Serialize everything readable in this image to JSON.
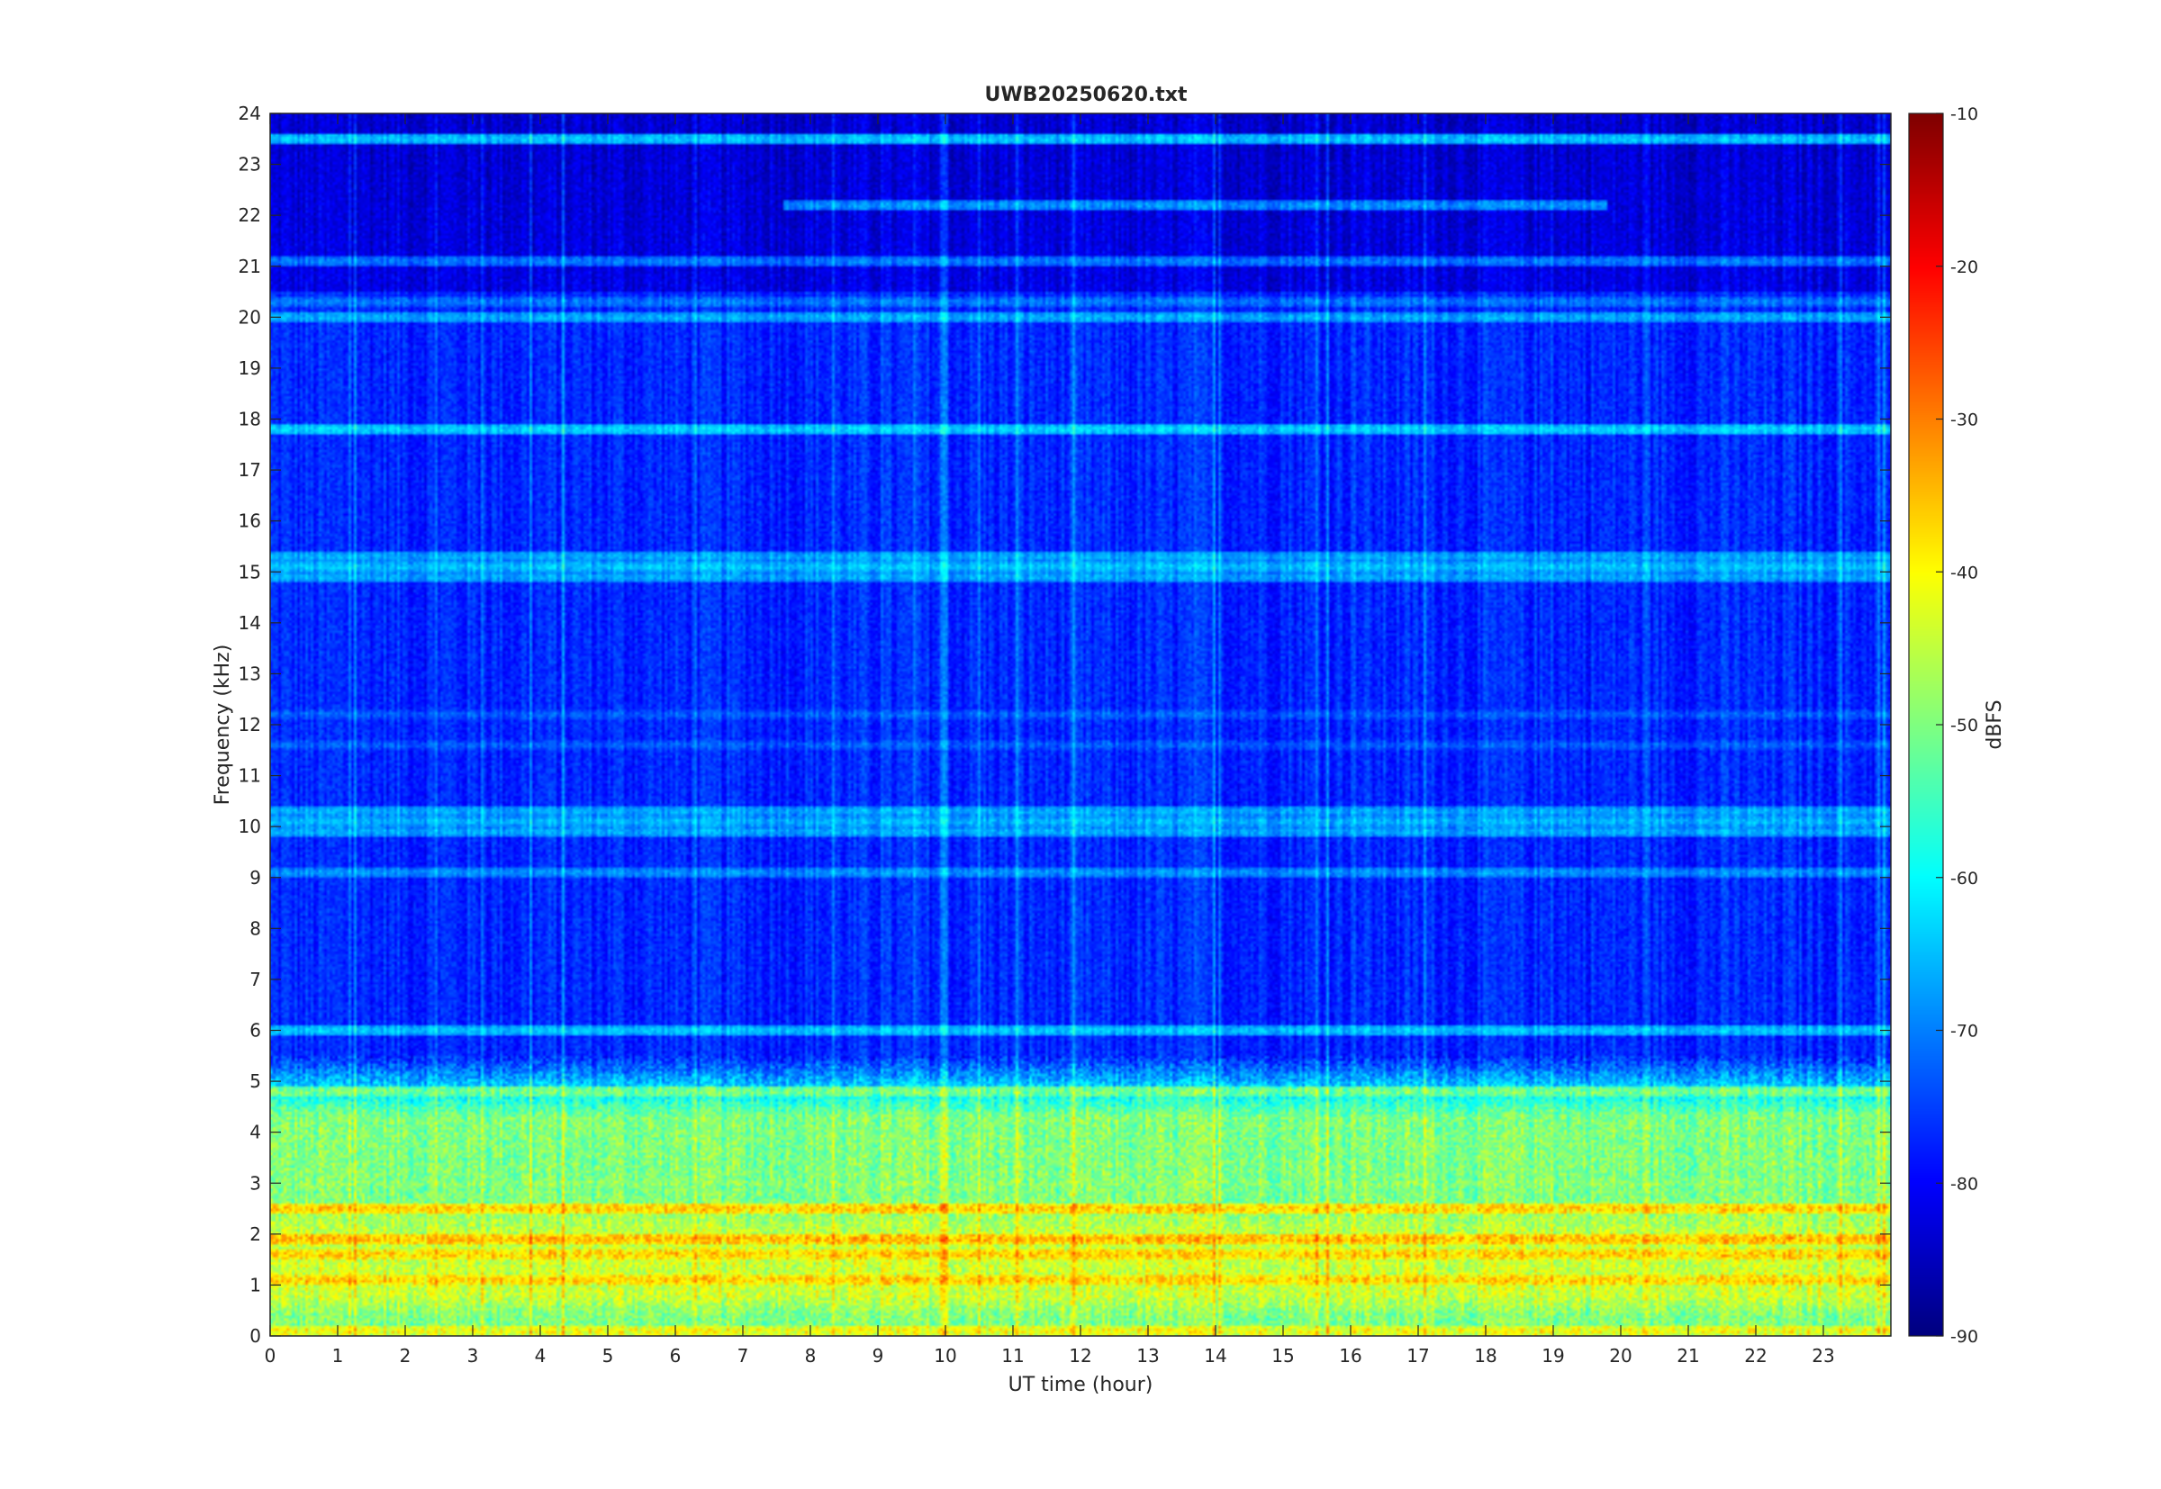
{
  "chart_data": {
    "type": "heatmap",
    "title": "UWB20250620.txt",
    "xlabel": "UT time (hour)",
    "ylabel": "Frequency (kHz)",
    "xlim": [
      0,
      24
    ],
    "ylim": [
      0,
      24
    ],
    "x_ticks": [
      "0",
      "1",
      "2",
      "3",
      "4",
      "5",
      "6",
      "7",
      "8",
      "9",
      "10",
      "11",
      "12",
      "13",
      "14",
      "15",
      "16",
      "17",
      "18",
      "19",
      "20",
      "21",
      "22",
      "23"
    ],
    "y_ticks": [
      "0",
      "1",
      "2",
      "3",
      "4",
      "5",
      "6",
      "7",
      "8",
      "9",
      "10",
      "11",
      "12",
      "13",
      "14",
      "15",
      "16",
      "17",
      "18",
      "19",
      "20",
      "21",
      "22",
      "23",
      "24"
    ],
    "colorbar": {
      "label": "dBFS",
      "range": [
        -90,
        -10
      ],
      "ticks": [
        "-10",
        "-20",
        "-30",
        "-40",
        "-50",
        "-60",
        "-70",
        "-80",
        "-90"
      ],
      "colormap": "jet"
    },
    "grid": false,
    "background_level_dbfs": -77,
    "horizontal_bands": [
      {
        "freq_khz": 23.5,
        "level_dbfs": -64
      },
      {
        "freq_khz": 22.2,
        "level_dbfs": -68,
        "t_start": 7.6,
        "t_end": 19.8
      },
      {
        "freq_khz": 21.1,
        "level_dbfs": -70
      },
      {
        "freq_khz": 20.3,
        "level_dbfs": -70
      },
      {
        "freq_khz": 20.0,
        "level_dbfs": -66
      },
      {
        "freq_khz": 17.8,
        "level_dbfs": -63
      },
      {
        "freq_khz": 15.3,
        "level_dbfs": -66
      },
      {
        "freq_khz": 15.1,
        "level_dbfs": -64
      },
      {
        "freq_khz": 14.9,
        "level_dbfs": -66
      },
      {
        "freq_khz": 12.2,
        "level_dbfs": -72
      },
      {
        "freq_khz": 11.6,
        "level_dbfs": -72
      },
      {
        "freq_khz": 10.3,
        "level_dbfs": -66
      },
      {
        "freq_khz": 10.1,
        "level_dbfs": -65
      },
      {
        "freq_khz": 9.9,
        "level_dbfs": -66
      },
      {
        "freq_khz": 9.1,
        "level_dbfs": -68
      },
      {
        "freq_khz": 6.0,
        "level_dbfs": -64
      },
      {
        "freq_khz": 4.8,
        "level_dbfs": -50
      },
      {
        "freq_khz": 4.2,
        "level_dbfs": -52
      },
      {
        "freq_khz": 3.0,
        "level_dbfs": -48
      },
      {
        "freq_khz": 2.5,
        "level_dbfs": -36
      },
      {
        "freq_khz": 1.9,
        "level_dbfs": -34
      },
      {
        "freq_khz": 1.6,
        "level_dbfs": -36
      },
      {
        "freq_khz": 1.1,
        "level_dbfs": -36
      },
      {
        "freq_khz": 0.1,
        "level_dbfs": -40
      }
    ],
    "low_frequency_region": {
      "freq_max_khz": 5.5,
      "level_dbfs": -50
    },
    "upper_region": {
      "freq_min_khz": 20.5,
      "level_dbfs": -82
    }
  }
}
